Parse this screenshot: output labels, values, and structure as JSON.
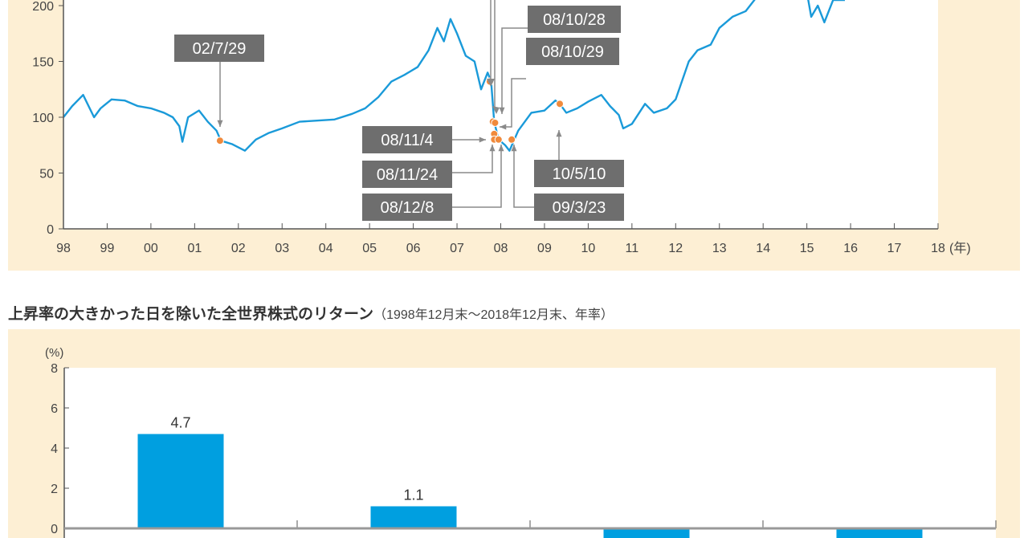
{
  "chart_data": [
    {
      "type": "line",
      "x_ticks": [
        "98",
        "99",
        "00",
        "01",
        "02",
        "03",
        "04",
        "05",
        "06",
        "07",
        "08",
        "09",
        "10",
        "11",
        "12",
        "13",
        "14",
        "15",
        "16",
        "17",
        "18"
      ],
      "x_unit": "(年)",
      "y_ticks": [
        0,
        50,
        100,
        150,
        200
      ],
      "xlim": [
        1998,
        2018
      ],
      "ylim": [
        0,
        200
      ],
      "line_color": "#1a9ad9",
      "marker_color": "#f08a3c",
      "series": [
        {
          "x": [
            1998.0,
            1998.2,
            1998.45,
            1998.7,
            1998.85,
            1999.1,
            1999.4,
            1999.7,
            2000.0,
            2000.3,
            2000.5,
            2000.65,
            2000.72,
            2000.85,
            2001.1,
            2001.3,
            2001.5,
            2001.6,
            2001.85,
            2002.15,
            2002.4,
            2002.7,
            2003.0,
            2003.4,
            2003.8,
            2004.2,
            2004.6,
            2004.9,
            2005.2,
            2005.5,
            2005.8,
            2006.1,
            2006.35,
            2006.55,
            2006.7,
            2006.85,
            2007.0,
            2007.2,
            2007.4,
            2007.55,
            2007.7,
            2007.78,
            2007.85,
            2007.95,
            2008.1,
            2008.2,
            2008.4,
            2008.7,
            2009.0,
            2009.25,
            2009.35,
            2009.5,
            2009.75,
            2010.0,
            2010.3,
            2010.5,
            2010.7,
            2010.8,
            2011.0,
            2011.3,
            2011.5,
            2011.8,
            2012.0,
            2012.3,
            2012.5,
            2012.8,
            2013.0,
            2013.3,
            2013.6,
            2013.8,
            2014.0,
            2014.5,
            2015.0,
            2015.1,
            2015.25,
            2015.4,
            2015.6,
            2015.87
          ],
          "y": [
            100,
            110,
            120,
            100,
            108,
            116,
            115,
            110,
            108,
            104,
            100,
            92,
            78,
            100,
            106,
            96,
            88,
            79,
            76,
            70,
            80,
            86,
            90,
            96,
            97,
            98,
            103,
            108,
            118,
            132,
            138,
            145,
            160,
            180,
            168,
            188,
            175,
            155,
            150,
            125,
            140,
            132,
            96,
            80,
            75,
            70,
            88,
            104,
            106,
            115,
            112,
            104,
            108,
            114,
            120,
            110,
            102,
            90,
            94,
            112,
            104,
            108,
            116,
            150,
            160,
            165,
            180,
            190,
            195,
            205,
            220,
            240,
            212,
            190,
            200,
            185,
            205,
            205
          ]
        }
      ],
      "annotations": [
        {
          "label": "02/7/29",
          "x": 2001.58,
          "y": 79
        },
        {
          "label": "08/10/28",
          "x": 2007.82,
          "y": 96
        },
        {
          "label": "08/10/29",
          "x": 2007.87,
          "y": 95
        },
        {
          "label": "08/11/4",
          "x": 2007.85,
          "y": 85
        },
        {
          "label": "08/11/24",
          "x": 2007.85,
          "y": 80
        },
        {
          "label": "08/12/8",
          "x": 2007.95,
          "y": 80
        },
        {
          "label": "09/3/23",
          "x": 2008.25,
          "y": 80
        },
        {
          "label": "10/5/10",
          "x": 2009.35,
          "y": 112
        }
      ],
      "extra_markers": [
        {
          "x": 2007.75,
          "y": 132
        }
      ]
    },
    {
      "type": "bar",
      "title": "上昇率の大きかった日を除いた全世界株式のリターン",
      "subtitle": "（1998年12月末～2018年12月末、年率）",
      "ylabel": "(%)",
      "y_ticks": [
        0,
        2,
        4,
        6,
        8
      ],
      "ylim": [
        0,
        8
      ],
      "bar_color": "#009fe0",
      "values": [
        4.7,
        1.1,
        null,
        null
      ],
      "value_labels": [
        "4.7",
        "1.1",
        "",
        ""
      ]
    }
  ],
  "colors": {
    "panel_bg": "#fdefd4",
    "label_box": "#6e6e6e",
    "arrow": "#8a8a8a"
  }
}
